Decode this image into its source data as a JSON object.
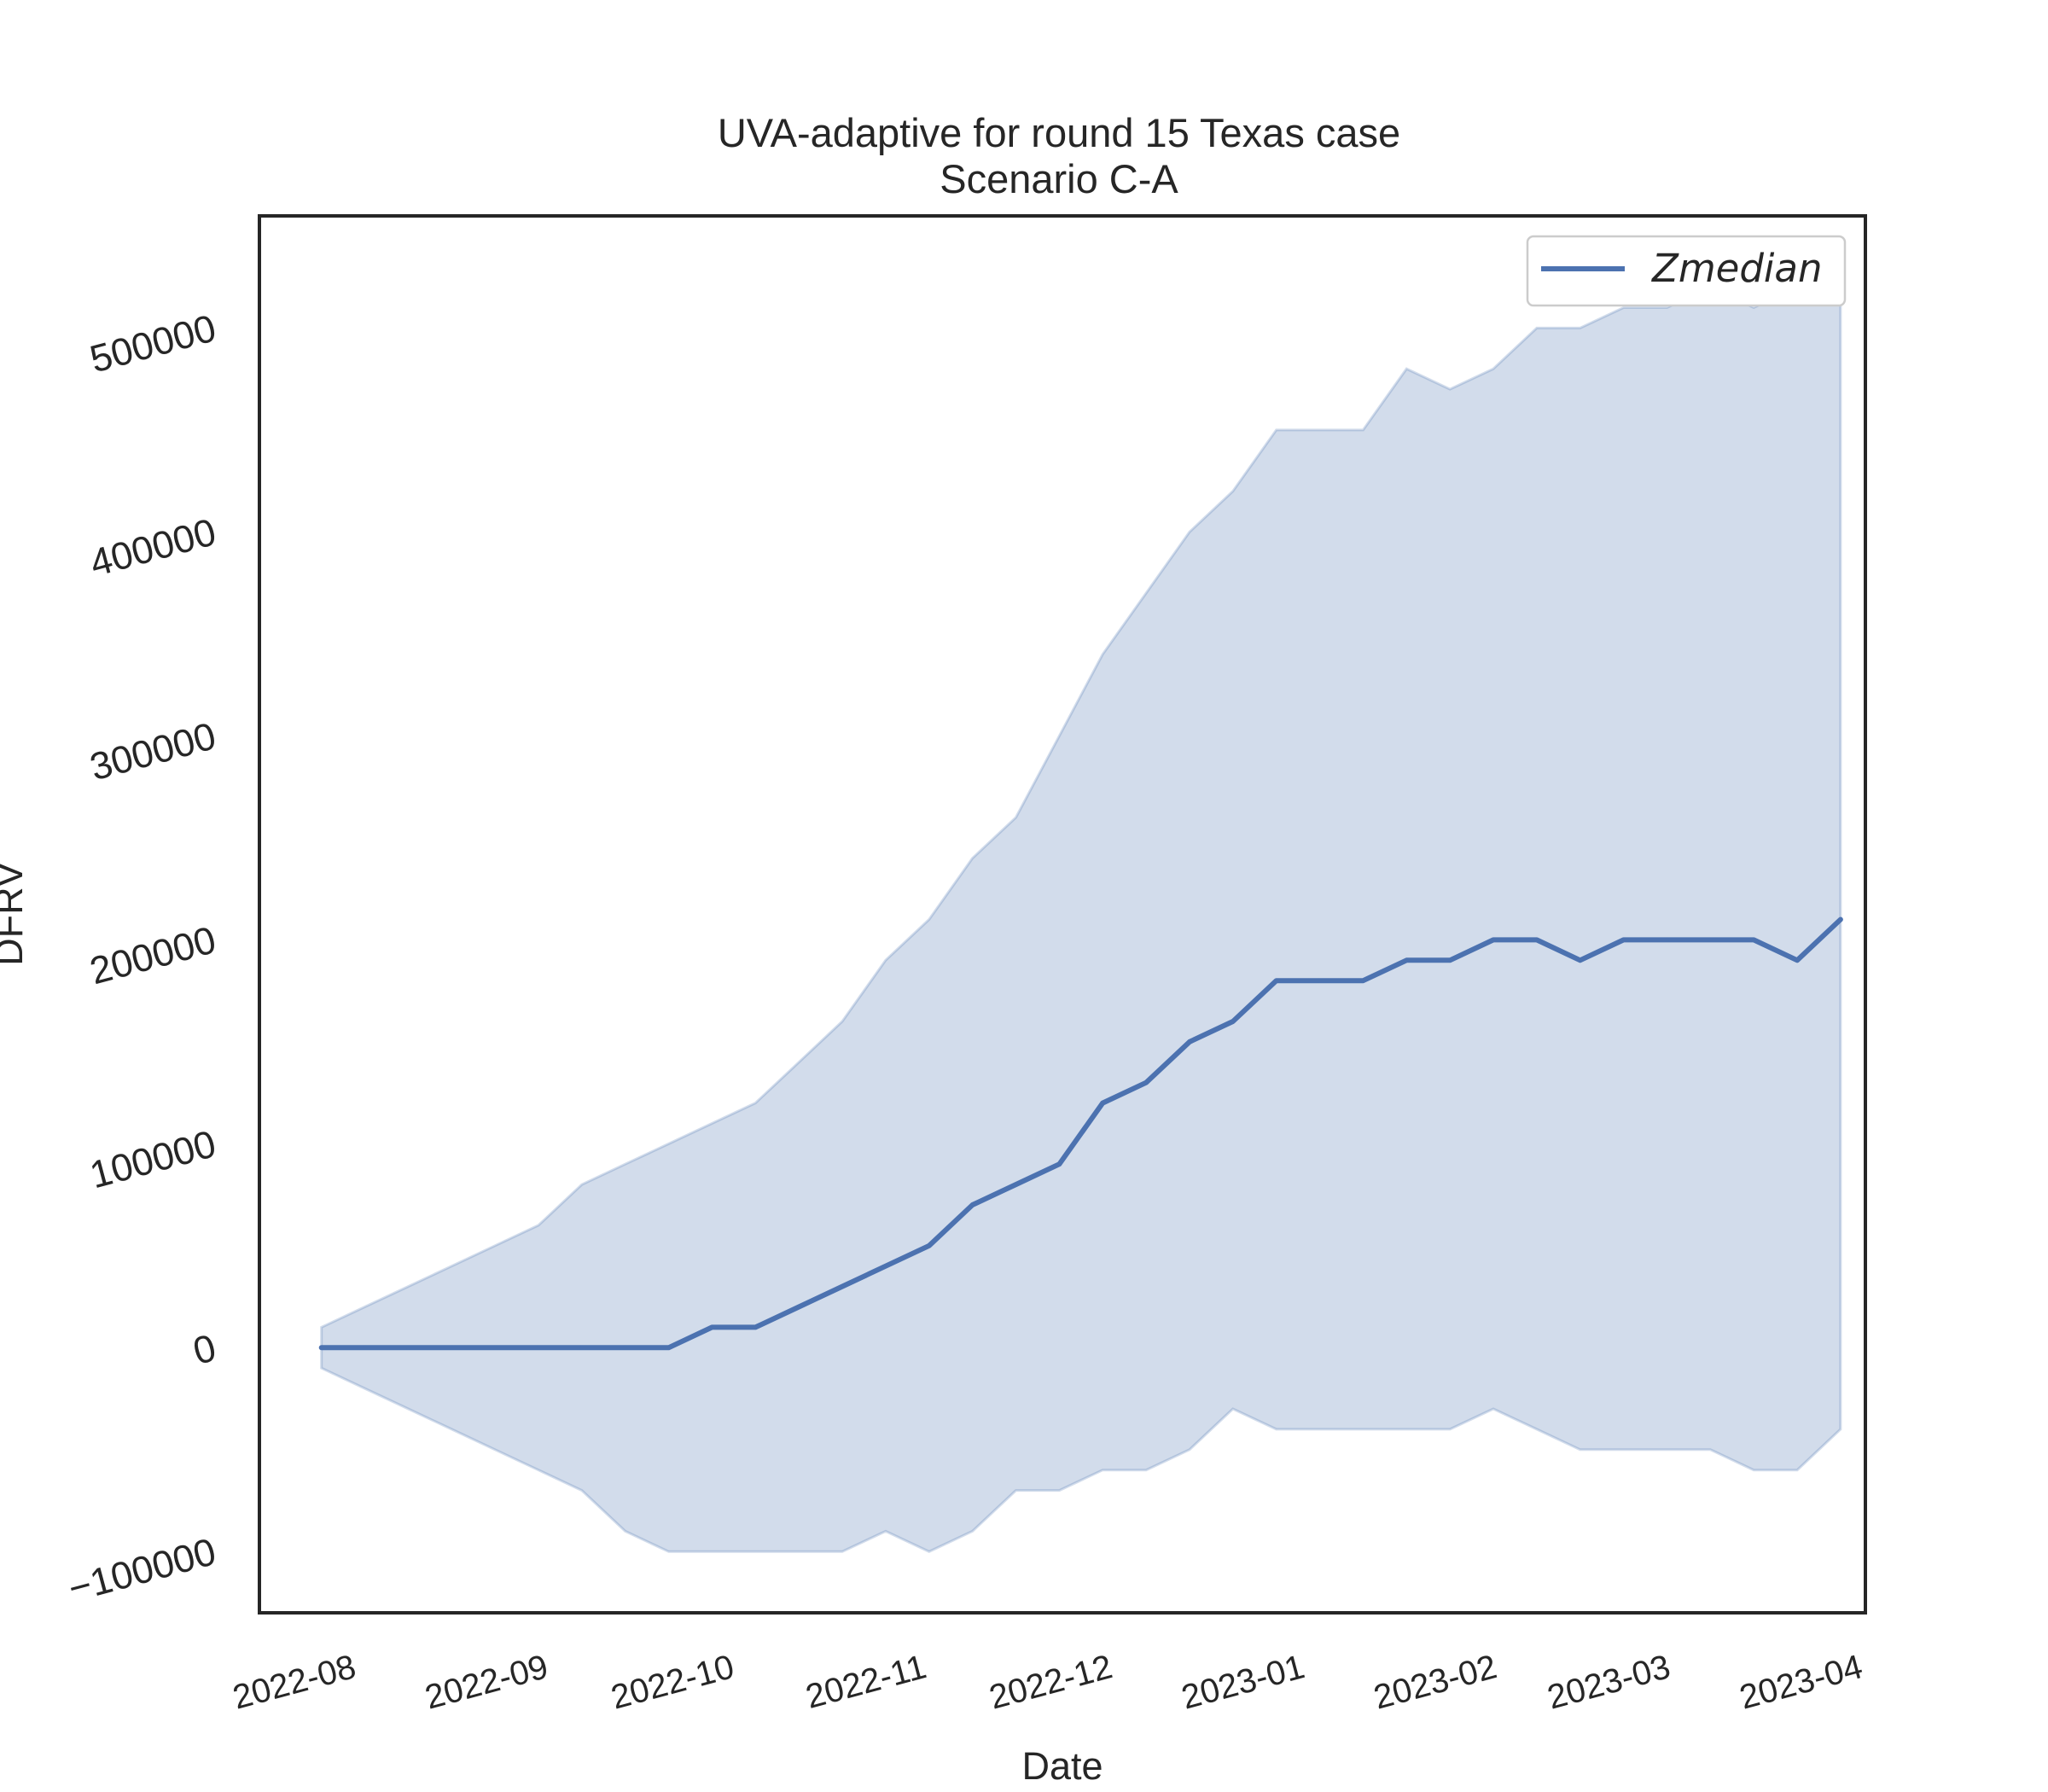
{
  "chart_data": {
    "type": "line",
    "title": "UVA-adaptive for round 15 Texas case",
    "subtitle": "Scenario C-A",
    "xlabel": "Date",
    "ylabel": "DFRV",
    "x_ticks": [
      "2022-08",
      "2022-09",
      "2022-10",
      "2022-11",
      "2022-12",
      "2023-01",
      "2023-02",
      "2023-03",
      "2023-04"
    ],
    "y_ticks": [
      "−100000",
      "0",
      "100000",
      "200000",
      "300000",
      "400000",
      "500000"
    ],
    "y_tick_values": [
      -100000,
      0,
      100000,
      200000,
      300000,
      400000,
      500000
    ],
    "xlim": [
      "2022-07-20",
      "2023-04-05"
    ],
    "ylim": [
      -130000,
      555000
    ],
    "grid": false,
    "legend_position": "top-right",
    "colors": {
      "line": "#4c72b0",
      "band": "#4c72b0",
      "axes": "#262626"
    },
    "x": [
      "2022-07-30",
      "2022-08-06",
      "2022-08-13",
      "2022-08-20",
      "2022-08-27",
      "2022-09-03",
      "2022-09-10",
      "2022-09-17",
      "2022-09-24",
      "2022-10-01",
      "2022-10-08",
      "2022-10-15",
      "2022-10-22",
      "2022-10-29",
      "2022-11-05",
      "2022-11-12",
      "2022-11-19",
      "2022-11-26",
      "2022-12-03",
      "2022-12-10",
      "2022-12-17",
      "2022-12-24",
      "2022-12-31",
      "2023-01-07",
      "2023-01-14",
      "2023-01-21",
      "2023-01-28",
      "2023-02-04",
      "2023-02-11",
      "2023-02-18",
      "2023-02-25",
      "2023-03-04",
      "2023-03-11",
      "2023-03-18",
      "2023-03-25",
      "2023-04-01"
    ],
    "series": [
      {
        "name": "Zmedian",
        "values": [
          0,
          0,
          0,
          0,
          0,
          0,
          0,
          0,
          0,
          10000,
          10000,
          20000,
          30000,
          40000,
          50000,
          70000,
          80000,
          90000,
          120000,
          130000,
          150000,
          160000,
          180000,
          180000,
          180000,
          190000,
          190000,
          200000,
          200000,
          190000,
          200000,
          200000,
          200000,
          200000,
          190000,
          210000
        ],
        "lower": [
          -10000,
          -20000,
          -30000,
          -40000,
          -50000,
          -60000,
          -70000,
          -90000,
          -100000,
          -100000,
          -100000,
          -100000,
          -100000,
          -90000,
          -100000,
          -90000,
          -70000,
          -70000,
          -60000,
          -60000,
          -50000,
          -30000,
          -40000,
          -40000,
          -40000,
          -40000,
          -40000,
          -30000,
          -40000,
          -50000,
          -50000,
          -50000,
          -50000,
          -60000,
          -60000,
          -40000
        ],
        "upper": [
          10000,
          20000,
          30000,
          40000,
          50000,
          60000,
          80000,
          90000,
          100000,
          110000,
          120000,
          140000,
          160000,
          190000,
          210000,
          240000,
          260000,
          300000,
          340000,
          370000,
          400000,
          420000,
          450000,
          450000,
          450000,
          480000,
          470000,
          480000,
          500000,
          500000,
          510000,
          510000,
          520000,
          510000,
          520000,
          530000
        ]
      }
    ]
  }
}
